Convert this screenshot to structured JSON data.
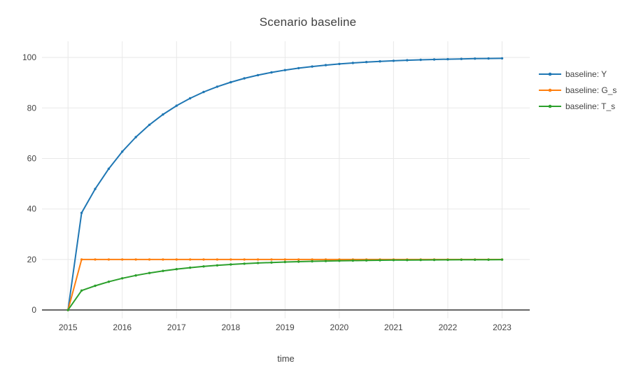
{
  "page": {
    "background": "#ffffff"
  },
  "chart_data": {
    "type": "line",
    "mode": "lines+markers",
    "title": "Scenario baseline",
    "xlabel": "time",
    "ylabel": "",
    "x": [
      2015,
      2015.25,
      2015.5,
      2015.75,
      2016,
      2016.25,
      2016.5,
      2016.75,
      2017,
      2017.25,
      2017.5,
      2017.75,
      2018,
      2018.25,
      2018.5,
      2018.75,
      2019,
      2019.25,
      2019.5,
      2019.75,
      2020,
      2020.25,
      2020.5,
      2020.75,
      2021,
      2021.25,
      2021.5,
      2021.75,
      2022,
      2022.25,
      2022.5,
      2022.75,
      2023
    ],
    "series": [
      {
        "name": "baseline: Y",
        "color": "#1f77b4",
        "values": [
          0,
          38.46,
          47.93,
          55.94,
          62.72,
          68.45,
          73.31,
          77.41,
          80.89,
          83.83,
          86.32,
          88.42,
          90.2,
          91.71,
          92.99,
          94.06,
          94.98,
          95.75,
          96.4,
          96.96,
          97.43,
          97.82,
          98.16,
          98.44,
          98.68,
          98.88,
          99.06,
          99.2,
          99.32,
          99.43,
          99.52,
          99.59,
          99.65
        ]
      },
      {
        "name": "baseline: G_s",
        "color": "#ff7f0e",
        "values": [
          0,
          20,
          20,
          20,
          20,
          20,
          20,
          20,
          20,
          20,
          20,
          20,
          20,
          20,
          20,
          20,
          20,
          20,
          20,
          20,
          20,
          20,
          20,
          20,
          20,
          20,
          20,
          20,
          20,
          20,
          20,
          20,
          20
        ]
      },
      {
        "name": "baseline: T_s",
        "color": "#2ca02c",
        "values": [
          0,
          7.69,
          9.59,
          11.19,
          12.54,
          13.69,
          14.66,
          15.48,
          16.18,
          16.77,
          17.26,
          17.68,
          18.04,
          18.34,
          18.6,
          18.81,
          19,
          19.15,
          19.28,
          19.39,
          19.49,
          19.56,
          19.63,
          19.69,
          19.74,
          19.78,
          19.81,
          19.84,
          19.87,
          19.89,
          19.9,
          19.92,
          19.93
        ]
      }
    ],
    "xticks": [
      "2015",
      "2016",
      "2017",
      "2018",
      "2019",
      "2020",
      "2021",
      "2022",
      "2023"
    ],
    "xtick_values": [
      2015,
      2016,
      2017,
      2018,
      2019,
      2020,
      2021,
      2022,
      2023
    ],
    "yticks": [
      0,
      20,
      40,
      60,
      80,
      100
    ],
    "xlim": [
      2014.52,
      2023.51
    ],
    "ylim": [
      -3.3,
      106.4
    ],
    "grid": true,
    "zeroline": true,
    "legend_position": "right"
  },
  "style": {
    "grid_color": "#e8e8e8",
    "zeroline_color": "#444444",
    "text_color": "#444444",
    "title_color": "#3f3f3f",
    "line_width": 2,
    "marker_radius": 1.7
  }
}
